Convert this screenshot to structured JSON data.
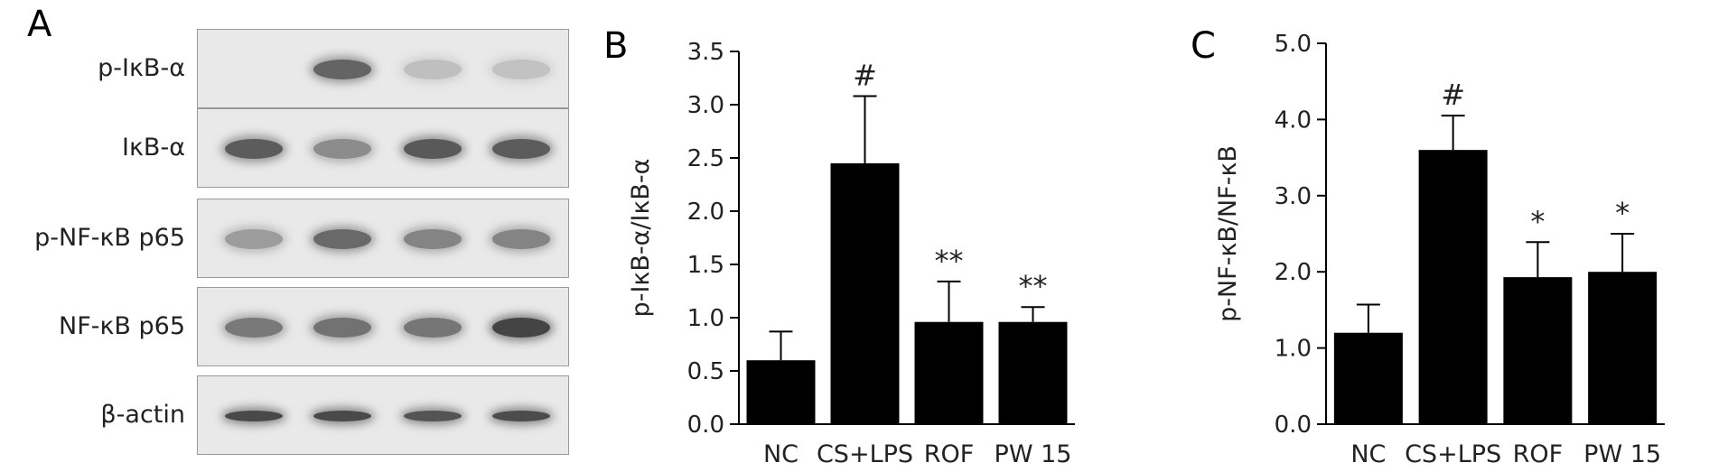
{
  "panels": {
    "a": {
      "letter": "A",
      "blots": [
        {
          "label": "p-IκB-α",
          "bands": [
            0.0,
            0.75,
            0.18,
            0.16
          ]
        },
        {
          "label": "IκB-α",
          "bands": [
            0.8,
            0.5,
            0.82,
            0.8
          ]
        },
        {
          "label": "p-NF-κB p65",
          "bands": [
            0.4,
            0.72,
            0.55,
            0.55
          ]
        },
        {
          "label": "NF-κB p65",
          "bands": [
            0.62,
            0.66,
            0.64,
            0.95
          ]
        },
        {
          "label": "β-actin",
          "bands": [
            0.92,
            0.92,
            0.85,
            0.9
          ]
        }
      ]
    },
    "b": {
      "letter": "B"
    },
    "c": {
      "letter": "C"
    }
  },
  "chart_data": [
    {
      "type": "bar",
      "panel": "B",
      "categories": [
        "NC",
        "CS+LPS",
        "ROF",
        "PW 15"
      ],
      "values": [
        0.6,
        2.45,
        0.96,
        0.96
      ],
      "errors": [
        0.27,
        0.63,
        0.38,
        0.14
      ],
      "annotations": [
        "",
        "#",
        "**",
        "**"
      ],
      "ylabel": "p-IκB-α/IκB-α",
      "ylim": [
        0,
        3.5
      ],
      "yticks": [
        "0.0",
        "0.5",
        "1.0",
        "1.5",
        "2.0",
        "2.5",
        "3.0",
        "3.5"
      ],
      "grid": false,
      "bar_color": "#000000"
    },
    {
      "type": "bar",
      "panel": "C",
      "categories": [
        "NC",
        "CS+LPS",
        "ROF",
        "PW 15"
      ],
      "values": [
        1.2,
        3.6,
        1.93,
        2.0
      ],
      "errors": [
        0.37,
        0.45,
        0.46,
        0.5
      ],
      "annotations": [
        "",
        "#",
        "*",
        "*"
      ],
      "ylabel": "p-NF-κB/NF-κB",
      "ylim": [
        0,
        5
      ],
      "yticks": [
        "0.0",
        "1.0",
        "2.0",
        "3.0",
        "4.0",
        "5.0"
      ],
      "grid": false,
      "bar_color": "#000000"
    }
  ]
}
